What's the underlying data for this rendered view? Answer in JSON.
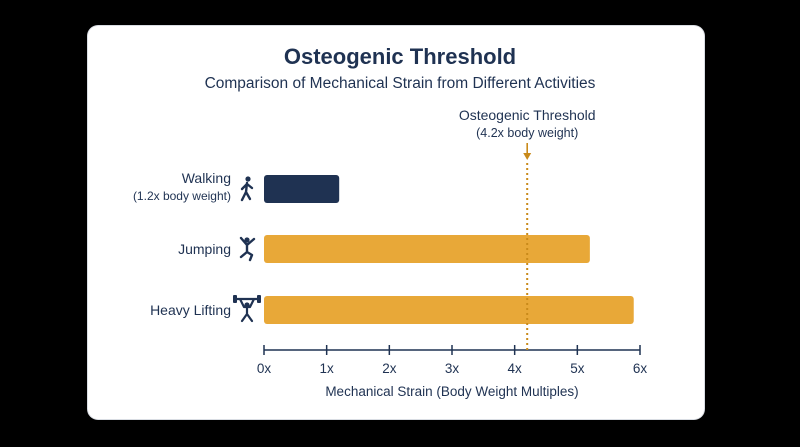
{
  "chart_data": {
    "type": "bar",
    "orientation": "horizontal",
    "title": "Osteogenic Threshold",
    "subtitle": "Comparison of Mechanical Strain from Different Activities",
    "xlabel": "Mechanical Strain (Body Weight Multiples)",
    "xlim": [
      0,
      6
    ],
    "xticks": [
      "0x",
      "1x",
      "2x",
      "3x",
      "4x",
      "5x",
      "6x"
    ],
    "categories": [
      {
        "label": "Walking",
        "sublabel": "(1.2x body weight)",
        "icon": "walking-person-icon",
        "value": 1.2,
        "color": "#1f3252"
      },
      {
        "label": "Jumping",
        "sublabel": "",
        "icon": "jumping-person-icon",
        "value": 5.2,
        "color": "#e8a838"
      },
      {
        "label": "Heavy Lifting",
        "sublabel": "",
        "icon": "weightlifter-icon",
        "value": 5.9,
        "color": "#e8a838"
      }
    ],
    "threshold": {
      "value": 4.2,
      "label": "Osteogenic Threshold",
      "sublabel": "(4.2x body weight)",
      "color": "#c98a1a",
      "style": "dotted"
    },
    "grid": false
  }
}
